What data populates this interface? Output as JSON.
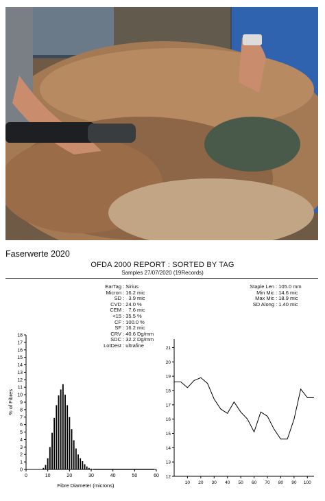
{
  "section_title": "Faserwerte 2020",
  "report": {
    "title": "OFDA 2000 REPORT : SORTED BY TAG",
    "subtitle": "Samples 27/07/2020 (19Records)"
  },
  "stats_left": [
    {
      "k": "EarTag",
      "v": "Sirius"
    },
    {
      "k": "Micron",
      "v": "16.2 mic"
    },
    {
      "k": "SD",
      "v": "  3.9 mic"
    },
    {
      "k": "CVD",
      "v": "24.0 %"
    },
    {
      "k": "CEM",
      "v": "  7.6 mic"
    },
    {
      "k": "<15",
      "v": "35.5 %"
    },
    {
      "k": "CF",
      "v": "100.0 %"
    },
    {
      "k": "SF",
      "v": "16.2 mic"
    },
    {
      "k": "CRV",
      "v": "40.6 Dg/mm"
    },
    {
      "k": "SDC",
      "v": "32.2 Dg/mm"
    },
    {
      "k": "LotDest",
      "v": "ultrafine"
    }
  ],
  "stats_right": [
    {
      "k": "Staple Len",
      "v": "105.0 mm"
    },
    {
      "k": "Min Mic",
      "v": "14.6 mic"
    },
    {
      "k": "Max Mic",
      "v": "18.9 mic"
    },
    {
      "k": "SD Along",
      "v": "1.40 mic"
    }
  ],
  "chart_data": [
    {
      "type": "bar",
      "title": "",
      "xlabel": "Fibre Diameter (microns)",
      "ylabel": "% of Fibres",
      "xlim": [
        0,
        60
      ],
      "ylim": [
        0,
        18
      ],
      "xticks": [
        0,
        10,
        20,
        30,
        40,
        50,
        60
      ],
      "yticks": [
        0,
        1,
        2,
        3,
        4,
        5,
        6,
        7,
        8,
        9,
        10,
        11,
        12,
        13,
        14,
        15,
        16,
        17,
        18
      ],
      "x": [
        8,
        9,
        10,
        11,
        12,
        13,
        14,
        15,
        16,
        17,
        18,
        19,
        20,
        21,
        22,
        23,
        24,
        25,
        26,
        27,
        28,
        29,
        30
      ],
      "values": [
        0.2,
        0.6,
        1.5,
        3.0,
        4.9,
        6.9,
        8.6,
        9.9,
        10.7,
        11.4,
        10.0,
        8.6,
        7.0,
        5.4,
        3.9,
        2.8,
        2.0,
        1.5,
        1.1,
        0.7,
        0.4,
        0.2,
        0.1
      ],
      "grid": false
    },
    {
      "type": "line",
      "title": "",
      "xlabel": "",
      "ylabel": "",
      "xlim": [
        0,
        105
      ],
      "ylim": [
        12,
        21.6
      ],
      "xticks": [
        10,
        20,
        30,
        40,
        50,
        60,
        70,
        80,
        90,
        100
      ],
      "yticks": [
        12,
        13,
        14,
        15,
        16,
        17,
        18,
        19,
        20,
        21
      ],
      "x": [
        0,
        5,
        10,
        15,
        20,
        25,
        30,
        35,
        40,
        45,
        50,
        55,
        60,
        65,
        70,
        75,
        80,
        85,
        90,
        95,
        100,
        105
      ],
      "y": [
        18.6,
        18.6,
        18.2,
        18.7,
        18.9,
        18.5,
        17.4,
        16.7,
        16.4,
        17.2,
        16.5,
        16.0,
        15.1,
        16.5,
        16.2,
        15.3,
        14.6,
        14.6,
        16.0,
        18.1,
        17.5,
        17.5
      ],
      "grid": false
    }
  ]
}
